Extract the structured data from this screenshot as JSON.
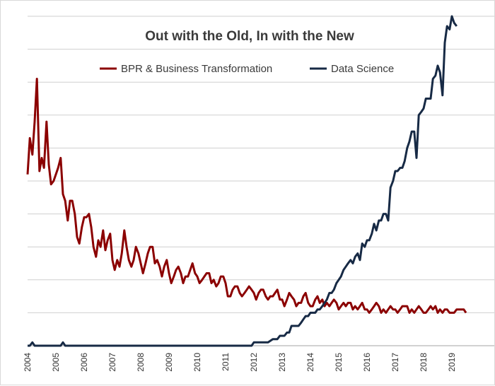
{
  "chart_data": {
    "type": "line",
    "title": "Out with the Old, In with the New",
    "xlabel": "",
    "ylabel": "",
    "x_ticks": [
      "2004",
      "2005",
      "2006",
      "2007",
      "2008",
      "2009",
      "2010",
      "2011",
      "2012",
      "2013",
      "2014",
      "2015",
      "2016",
      "2017",
      "2018",
      "2019"
    ],
    "xlim": [
      2004.0,
      2019.55
    ],
    "ylim": [
      0,
      100
    ],
    "grid": "horizontal",
    "legend_position": "top",
    "series": [
      {
        "name": "BPR & Business Transformation",
        "color": "#8b0000",
        "points": [
          [
            2004.0,
            52
          ],
          [
            2004.08,
            63
          ],
          [
            2004.17,
            58
          ],
          [
            2004.25,
            68
          ],
          [
            2004.33,
            81
          ],
          [
            2004.42,
            53
          ],
          [
            2004.5,
            57
          ],
          [
            2004.58,
            54
          ],
          [
            2004.67,
            68
          ],
          [
            2004.75,
            55
          ],
          [
            2004.83,
            49
          ],
          [
            2004.92,
            50
          ],
          [
            2005.0,
            52
          ],
          [
            2005.08,
            54
          ],
          [
            2005.17,
            57
          ],
          [
            2005.25,
            46
          ],
          [
            2005.33,
            44
          ],
          [
            2005.42,
            38
          ],
          [
            2005.5,
            44
          ],
          [
            2005.58,
            44
          ],
          [
            2005.67,
            40
          ],
          [
            2005.75,
            33
          ],
          [
            2005.83,
            31
          ],
          [
            2005.92,
            36
          ],
          [
            2006.0,
            39
          ],
          [
            2006.08,
            39
          ],
          [
            2006.17,
            40
          ],
          [
            2006.25,
            36
          ],
          [
            2006.33,
            30
          ],
          [
            2006.42,
            27
          ],
          [
            2006.5,
            32
          ],
          [
            2006.58,
            30
          ],
          [
            2006.67,
            35
          ],
          [
            2006.75,
            29
          ],
          [
            2006.83,
            32
          ],
          [
            2006.92,
            34
          ],
          [
            2007.0,
            26
          ],
          [
            2007.08,
            23
          ],
          [
            2007.17,
            26
          ],
          [
            2007.25,
            24
          ],
          [
            2007.33,
            28
          ],
          [
            2007.42,
            35
          ],
          [
            2007.5,
            30
          ],
          [
            2007.58,
            26
          ],
          [
            2007.67,
            24
          ],
          [
            2007.75,
            26
          ],
          [
            2007.83,
            30
          ],
          [
            2007.92,
            28
          ],
          [
            2008.0,
            25
          ],
          [
            2008.08,
            22
          ],
          [
            2008.17,
            25
          ],
          [
            2008.25,
            28
          ],
          [
            2008.33,
            30
          ],
          [
            2008.42,
            30
          ],
          [
            2008.5,
            25
          ],
          [
            2008.58,
            26
          ],
          [
            2008.67,
            24
          ],
          [
            2008.75,
            21
          ],
          [
            2008.83,
            24
          ],
          [
            2008.92,
            26
          ],
          [
            2009.0,
            22
          ],
          [
            2009.08,
            19
          ],
          [
            2009.17,
            21
          ],
          [
            2009.25,
            23
          ],
          [
            2009.33,
            24
          ],
          [
            2009.42,
            22
          ],
          [
            2009.5,
            19
          ],
          [
            2009.58,
            21
          ],
          [
            2009.67,
            21
          ],
          [
            2009.75,
            23
          ],
          [
            2009.83,
            25
          ],
          [
            2009.92,
            22
          ],
          [
            2010.0,
            21
          ],
          [
            2010.08,
            19
          ],
          [
            2010.17,
            20
          ],
          [
            2010.25,
            21
          ],
          [
            2010.33,
            22
          ],
          [
            2010.42,
            22
          ],
          [
            2010.5,
            19
          ],
          [
            2010.58,
            20
          ],
          [
            2010.67,
            18
          ],
          [
            2010.75,
            19
          ],
          [
            2010.83,
            21
          ],
          [
            2010.92,
            21
          ],
          [
            2011.0,
            19
          ],
          [
            2011.08,
            15
          ],
          [
            2011.17,
            15
          ],
          [
            2011.25,
            17
          ],
          [
            2011.33,
            18
          ],
          [
            2011.42,
            18
          ],
          [
            2011.5,
            16
          ],
          [
            2011.58,
            15
          ],
          [
            2011.67,
            16
          ],
          [
            2011.75,
            17
          ],
          [
            2011.83,
            18
          ],
          [
            2011.92,
            17
          ],
          [
            2012.0,
            16
          ],
          [
            2012.08,
            14
          ],
          [
            2012.17,
            16
          ],
          [
            2012.25,
            17
          ],
          [
            2012.33,
            17
          ],
          [
            2012.42,
            15
          ],
          [
            2012.5,
            14
          ],
          [
            2012.58,
            15
          ],
          [
            2012.67,
            15
          ],
          [
            2012.75,
            16
          ],
          [
            2012.83,
            17
          ],
          [
            2012.92,
            14
          ],
          [
            2013.0,
            14
          ],
          [
            2013.08,
            12
          ],
          [
            2013.17,
            14
          ],
          [
            2013.25,
            16
          ],
          [
            2013.33,
            15
          ],
          [
            2013.42,
            14
          ],
          [
            2013.5,
            12
          ],
          [
            2013.58,
            13
          ],
          [
            2013.67,
            13
          ],
          [
            2013.75,
            15
          ],
          [
            2013.83,
            16
          ],
          [
            2013.92,
            13
          ],
          [
            2014.0,
            12
          ],
          [
            2014.08,
            12
          ],
          [
            2014.17,
            14
          ],
          [
            2014.25,
            15
          ],
          [
            2014.33,
            13
          ],
          [
            2014.42,
            14
          ],
          [
            2014.5,
            12
          ],
          [
            2014.58,
            13
          ],
          [
            2014.67,
            12
          ],
          [
            2014.75,
            13
          ],
          [
            2014.83,
            14
          ],
          [
            2014.92,
            13
          ],
          [
            2015.0,
            11
          ],
          [
            2015.08,
            12
          ],
          [
            2015.17,
            13
          ],
          [
            2015.25,
            12
          ],
          [
            2015.33,
            13
          ],
          [
            2015.42,
            13
          ],
          [
            2015.5,
            11
          ],
          [
            2015.58,
            12
          ],
          [
            2015.67,
            11
          ],
          [
            2015.75,
            12
          ],
          [
            2015.83,
            13
          ],
          [
            2015.92,
            11
          ],
          [
            2016.0,
            11
          ],
          [
            2016.08,
            10
          ],
          [
            2016.17,
            11
          ],
          [
            2016.25,
            12
          ],
          [
            2016.33,
            13
          ],
          [
            2016.42,
            12
          ],
          [
            2016.5,
            10
          ],
          [
            2016.58,
            11
          ],
          [
            2016.67,
            10
          ],
          [
            2016.75,
            11
          ],
          [
            2016.83,
            12
          ],
          [
            2016.92,
            11
          ],
          [
            2017.0,
            11
          ],
          [
            2017.08,
            10
          ],
          [
            2017.17,
            11
          ],
          [
            2017.25,
            12
          ],
          [
            2017.33,
            12
          ],
          [
            2017.42,
            12
          ],
          [
            2017.5,
            10
          ],
          [
            2017.58,
            11
          ],
          [
            2017.67,
            10
          ],
          [
            2017.75,
            11
          ],
          [
            2017.83,
            12
          ],
          [
            2017.92,
            11
          ],
          [
            2018.0,
            10
          ],
          [
            2018.08,
            10
          ],
          [
            2018.17,
            11
          ],
          [
            2018.25,
            12
          ],
          [
            2018.33,
            11
          ],
          [
            2018.42,
            12
          ],
          [
            2018.5,
            10
          ],
          [
            2018.58,
            11
          ],
          [
            2018.67,
            10
          ],
          [
            2018.75,
            11
          ],
          [
            2018.83,
            11
          ],
          [
            2018.92,
            10
          ],
          [
            2019.0,
            10
          ],
          [
            2019.08,
            10
          ],
          [
            2019.17,
            11
          ],
          [
            2019.25,
            11
          ],
          [
            2019.33,
            11
          ],
          [
            2019.42,
            11
          ],
          [
            2019.5,
            10
          ]
        ]
      },
      {
        "name": "Data Science",
        "color": "#172a45",
        "points": [
          [
            2004.0,
            0
          ],
          [
            2004.08,
            0
          ],
          [
            2004.17,
            1
          ],
          [
            2004.25,
            0
          ],
          [
            2004.5,
            0
          ],
          [
            2004.75,
            0
          ],
          [
            2005.0,
            0
          ],
          [
            2005.17,
            0
          ],
          [
            2005.25,
            1
          ],
          [
            2005.33,
            0
          ],
          [
            2006.0,
            0
          ],
          [
            2007.0,
            0
          ],
          [
            2008.0,
            0
          ],
          [
            2009.0,
            0
          ],
          [
            2010.0,
            0
          ],
          [
            2011.0,
            0
          ],
          [
            2011.5,
            0
          ],
          [
            2011.92,
            0
          ],
          [
            2012.0,
            1
          ],
          [
            2012.17,
            1
          ],
          [
            2012.33,
            1
          ],
          [
            2012.5,
            1
          ],
          [
            2012.67,
            2
          ],
          [
            2012.83,
            2
          ],
          [
            2012.92,
            3
          ],
          [
            2013.0,
            3
          ],
          [
            2013.08,
            3
          ],
          [
            2013.17,
            4
          ],
          [
            2013.25,
            4
          ],
          [
            2013.33,
            6
          ],
          [
            2013.42,
            6
          ],
          [
            2013.5,
            6
          ],
          [
            2013.58,
            6
          ],
          [
            2013.67,
            7
          ],
          [
            2013.75,
            8
          ],
          [
            2013.83,
            9
          ],
          [
            2013.92,
            9
          ],
          [
            2014.0,
            10
          ],
          [
            2014.08,
            10
          ],
          [
            2014.17,
            10
          ],
          [
            2014.25,
            11
          ],
          [
            2014.33,
            11
          ],
          [
            2014.42,
            12
          ],
          [
            2014.5,
            13
          ],
          [
            2014.58,
            14
          ],
          [
            2014.67,
            16
          ],
          [
            2014.75,
            16
          ],
          [
            2014.83,
            17
          ],
          [
            2014.92,
            19
          ],
          [
            2015.0,
            20
          ],
          [
            2015.08,
            21
          ],
          [
            2015.17,
            23
          ],
          [
            2015.25,
            24
          ],
          [
            2015.33,
            25
          ],
          [
            2015.42,
            26
          ],
          [
            2015.5,
            25
          ],
          [
            2015.58,
            27
          ],
          [
            2015.67,
            28
          ],
          [
            2015.75,
            26
          ],
          [
            2015.83,
            31
          ],
          [
            2015.92,
            30
          ],
          [
            2016.0,
            32
          ],
          [
            2016.08,
            32
          ],
          [
            2016.17,
            34
          ],
          [
            2016.25,
            37
          ],
          [
            2016.33,
            35
          ],
          [
            2016.42,
            38
          ],
          [
            2016.5,
            38
          ],
          [
            2016.58,
            40
          ],
          [
            2016.67,
            40
          ],
          [
            2016.75,
            38
          ],
          [
            2016.83,
            48
          ],
          [
            2016.92,
            50
          ],
          [
            2017.0,
            53
          ],
          [
            2017.08,
            53
          ],
          [
            2017.17,
            54
          ],
          [
            2017.25,
            54
          ],
          [
            2017.33,
            56
          ],
          [
            2017.42,
            60
          ],
          [
            2017.5,
            62
          ],
          [
            2017.58,
            65
          ],
          [
            2017.67,
            65
          ],
          [
            2017.75,
            57
          ],
          [
            2017.83,
            70
          ],
          [
            2017.92,
            71
          ],
          [
            2018.0,
            72
          ],
          [
            2018.08,
            75
          ],
          [
            2018.17,
            75
          ],
          [
            2018.25,
            75
          ],
          [
            2018.33,
            81
          ],
          [
            2018.42,
            82
          ],
          [
            2018.5,
            85
          ],
          [
            2018.58,
            83
          ],
          [
            2018.67,
            76
          ],
          [
            2018.75,
            92
          ],
          [
            2018.83,
            97
          ],
          [
            2018.92,
            96
          ],
          [
            2019.0,
            100
          ],
          [
            2019.08,
            98
          ],
          [
            2019.17,
            97
          ]
        ]
      }
    ]
  }
}
